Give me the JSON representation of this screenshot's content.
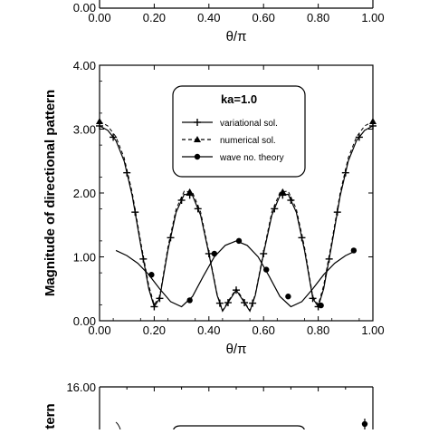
{
  "chart_data": [
    {
      "type": "line",
      "note_visible": "bottom edge of an upper panel (cropped)",
      "x_ticks": [
        "0.00",
        "0.20",
        "0.40",
        "0.60",
        "0.80",
        "1.00"
      ],
      "y_ticks": [
        "0.00"
      ],
      "xlabel": "θ/π",
      "ylabel": ""
    },
    {
      "type": "line",
      "title": "ka=1.0",
      "xlabel": "θ/π",
      "ylabel": "Magnitude of directional pattern",
      "xlim": [
        0,
        1
      ],
      "ylim": [
        0,
        4
      ],
      "x_ticks": [
        "0.00",
        "0.20",
        "0.40",
        "0.60",
        "0.80",
        "1.00"
      ],
      "y_ticks": [
        "0.00",
        "1.00",
        "2.00",
        "3.00",
        "4.00"
      ],
      "legend": {
        "title": "ka=1.0",
        "position": "top-center"
      },
      "series": [
        {
          "name": "variational sol.",
          "marker": "plus",
          "line": "solid",
          "x": [
            0.0,
            0.03,
            0.06,
            0.09,
            0.12,
            0.15,
            0.18,
            0.2,
            0.22,
            0.25,
            0.28,
            0.31,
            0.34,
            0.37,
            0.4,
            0.43,
            0.45,
            0.48,
            0.5,
            0.52,
            0.55,
            0.57,
            0.6,
            0.63,
            0.66,
            0.69,
            0.72,
            0.75,
            0.78,
            0.8,
            0.82,
            0.85,
            0.88,
            0.91,
            0.94,
            0.97,
            1.0
          ],
          "y": [
            3.05,
            2.98,
            2.82,
            2.5,
            1.95,
            1.2,
            0.5,
            0.22,
            0.35,
            1.1,
            1.7,
            1.98,
            1.96,
            1.65,
            1.05,
            0.4,
            0.15,
            0.35,
            0.48,
            0.35,
            0.15,
            0.4,
            1.05,
            1.65,
            1.96,
            1.98,
            1.7,
            1.1,
            0.35,
            0.22,
            0.5,
            1.2,
            1.95,
            2.5,
            2.82,
            2.98,
            3.05
          ],
          "marker_x": [
            0.0,
            0.05,
            0.1,
            0.13,
            0.16,
            0.2,
            0.22,
            0.26,
            0.3,
            0.33,
            0.36,
            0.4,
            0.44,
            0.47,
            0.5,
            0.53,
            0.56,
            0.6,
            0.64,
            0.67,
            0.7,
            0.74,
            0.78,
            0.8,
            0.84,
            0.87,
            0.9,
            0.95,
            1.0
          ]
        },
        {
          "name": "numerical sol.",
          "marker": "triangle",
          "line": "dashed",
          "x": [
            0.0,
            0.03,
            0.06,
            0.09,
            0.12,
            0.15,
            0.18,
            0.2,
            0.22,
            0.25,
            0.28,
            0.31,
            0.34,
            0.37,
            0.4,
            0.43,
            0.45,
            0.48,
            0.5,
            0.52,
            0.55,
            0.57,
            0.6,
            0.63,
            0.66,
            0.69,
            0.72,
            0.75,
            0.78,
            0.8,
            0.82,
            0.85,
            0.88,
            0.91,
            0.94,
            0.97,
            1.0
          ],
          "y": [
            3.12,
            3.05,
            2.88,
            2.55,
            2.0,
            1.25,
            0.55,
            0.25,
            0.38,
            1.15,
            1.75,
            2.03,
            2.01,
            1.7,
            1.08,
            0.42,
            0.16,
            0.37,
            0.5,
            0.37,
            0.16,
            0.42,
            1.08,
            1.7,
            2.01,
            2.03,
            1.75,
            1.15,
            0.38,
            0.25,
            0.55,
            1.25,
            2.0,
            2.55,
            2.88,
            3.05,
            3.12
          ],
          "marker_x": [
            0.0,
            0.33,
            0.67,
            1.0
          ]
        },
        {
          "name": "wave no. theory",
          "marker": "circle",
          "line": "solid",
          "x": [
            0.06,
            0.1,
            0.14,
            0.18,
            0.22,
            0.26,
            0.3,
            0.34,
            0.38,
            0.42,
            0.46,
            0.5,
            0.54,
            0.58,
            0.62,
            0.66,
            0.7,
            0.74,
            0.78,
            0.82,
            0.86,
            0.9,
            0.94
          ],
          "y": [
            1.1,
            1.02,
            0.9,
            0.72,
            0.5,
            0.3,
            0.22,
            0.38,
            0.7,
            1.0,
            1.18,
            1.25,
            1.18,
            1.0,
            0.7,
            0.38,
            0.22,
            0.3,
            0.5,
            0.72,
            0.9,
            1.02,
            1.1
          ],
          "marker_x": [
            0.19,
            0.33,
            0.42,
            0.51,
            0.61,
            0.69,
            0.81,
            0.93
          ],
          "marker_y": [
            0.72,
            0.32,
            1.05,
            1.25,
            0.8,
            0.38,
            0.24,
            1.1
          ]
        }
      ]
    },
    {
      "type": "line",
      "note_visible": "top of a lower panel (cropped)",
      "y_ticks": [
        "16.00"
      ],
      "ylabel_fragment": "ttern"
    }
  ]
}
